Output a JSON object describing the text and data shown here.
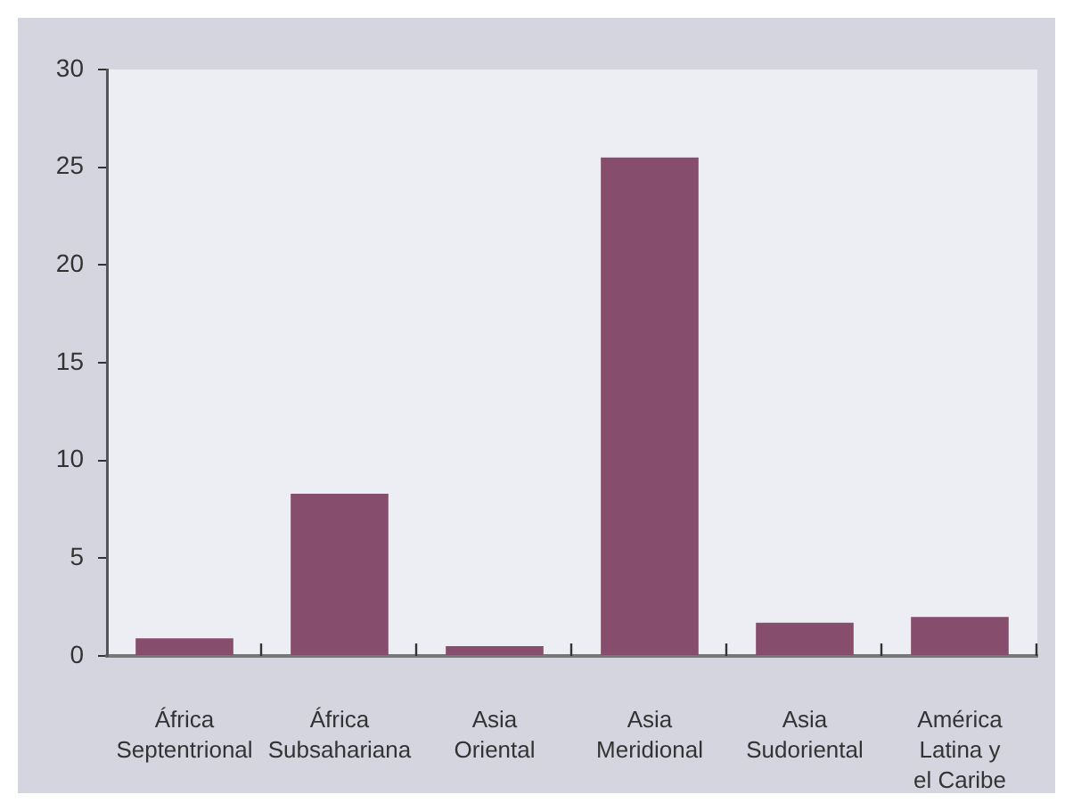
{
  "chart_data": {
    "type": "bar",
    "categories": [
      "África Septentrional",
      "África Subsahariana",
      "Asia Oriental",
      "Asia Meridional",
      "Asia Sudoriental",
      "América Latina y el Caribe"
    ],
    "values": [
      0.9,
      8.3,
      0.5,
      25.5,
      1.7,
      2.0
    ],
    "color": "#864e6c",
    "ylim": [
      0,
      30
    ],
    "yticks": [
      0,
      5,
      10,
      15,
      20,
      25,
      30
    ]
  }
}
